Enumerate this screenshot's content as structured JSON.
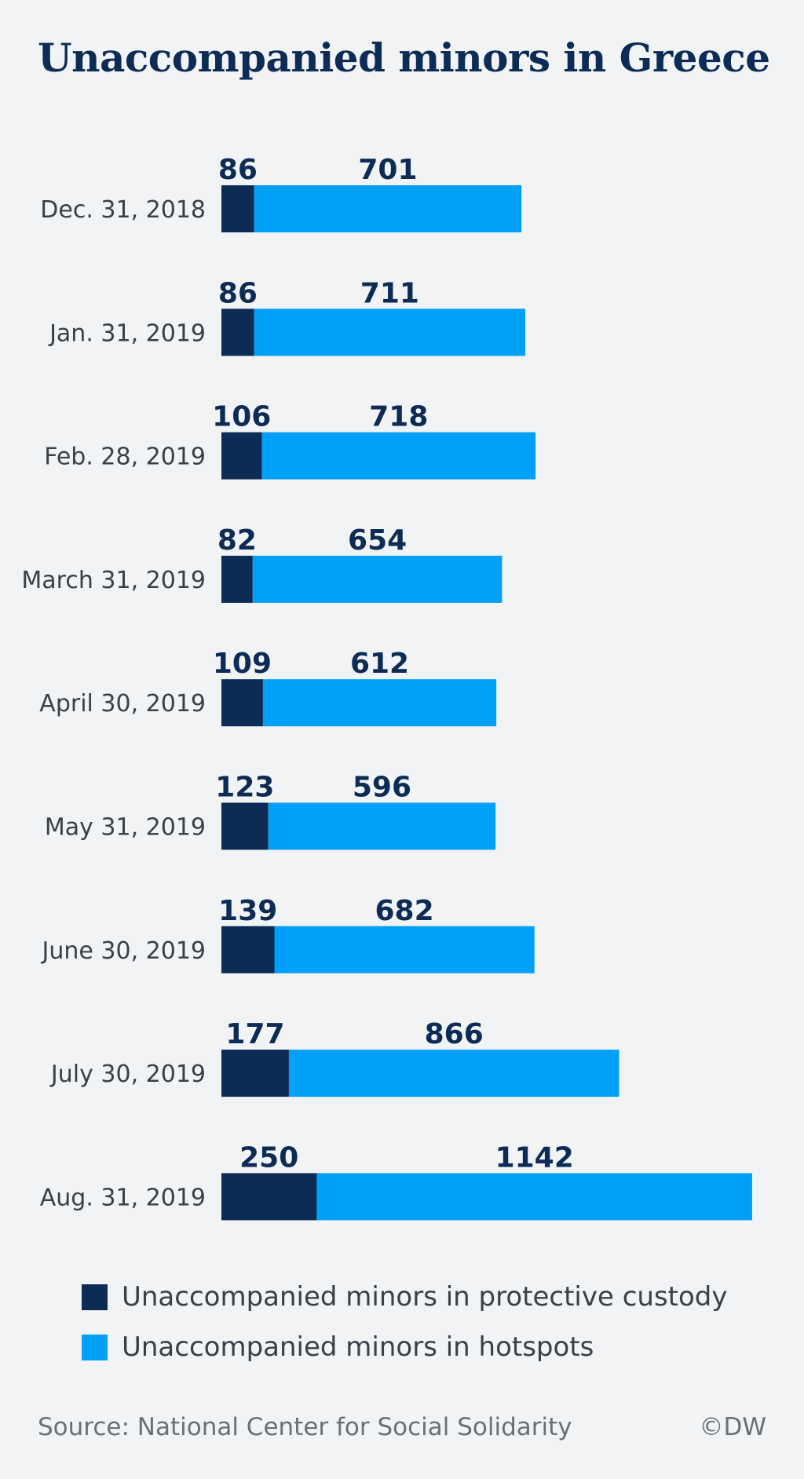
{
  "chart_data": {
    "type": "bar",
    "orientation": "horizontal",
    "stacked": true,
    "title": "Unaccompanied minors in Greece",
    "categories": [
      "Dec. 31, 2018",
      "Jan. 31, 2019",
      "Feb. 28, 2019",
      "March 31, 2019",
      "April 30, 2019",
      "May 31, 2019",
      "June 30, 2019",
      "July 30, 2019",
      "Aug. 31, 2019"
    ],
    "series": [
      {
        "name": "Unaccompanied minors in protective custody",
        "color": "#0c2c55",
        "values": [
          86,
          86,
          106,
          82,
          109,
          123,
          139,
          177,
          250
        ]
      },
      {
        "name": "Unaccompanied minors in hotspots",
        "color": "#00a0f8",
        "values": [
          701,
          711,
          718,
          654,
          612,
          596,
          682,
          866,
          1142
        ]
      }
    ],
    "xlabel": "",
    "ylabel": "",
    "grid": false,
    "legend_position": "bottom"
  },
  "footer": {
    "source": "Source: National Center for Social Solidarity",
    "credit": "©DW"
  }
}
